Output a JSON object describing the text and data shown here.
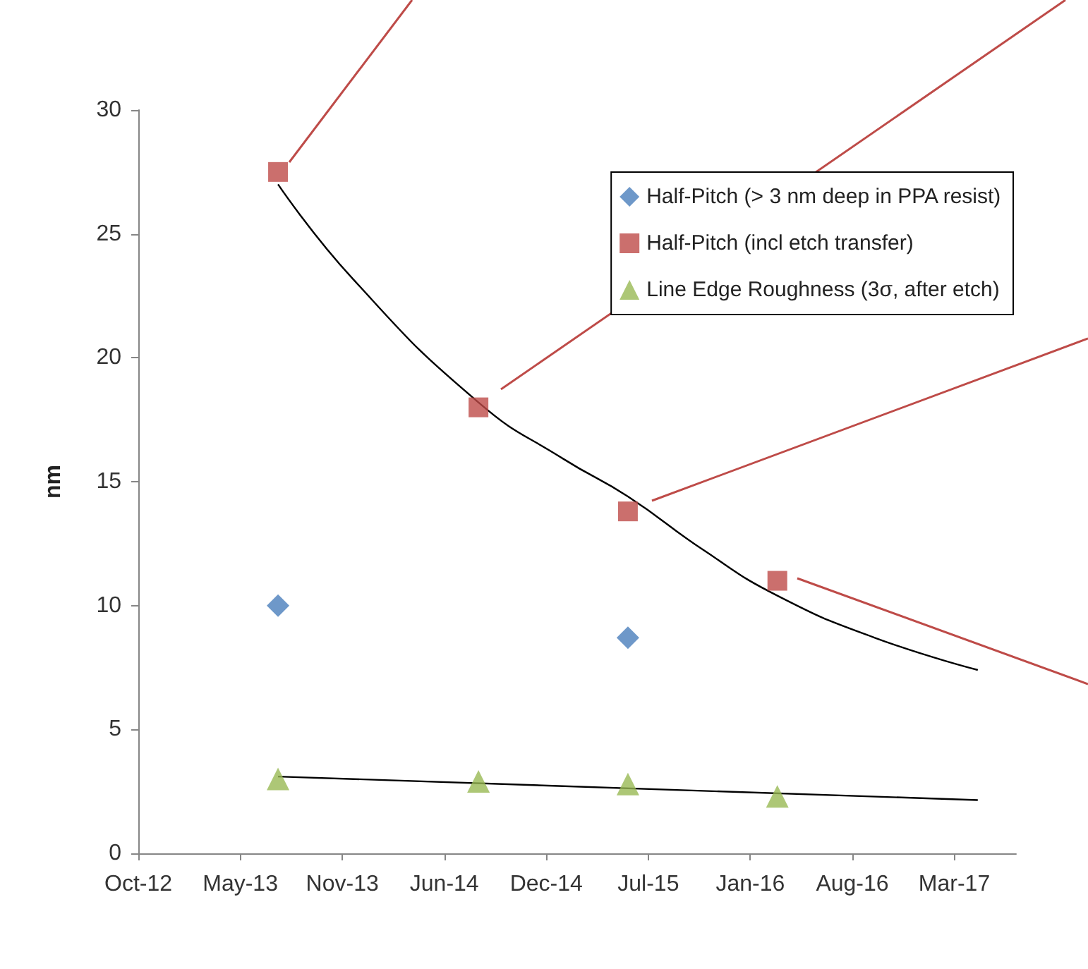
{
  "chart_data": {
    "type": "scatter",
    "ylabel": "nm",
    "xlim": [
      "2012-10-15",
      "2017-07-02"
    ],
    "xticks": [
      {
        "value": "2012-10-15",
        "label": "Oct-12"
      },
      {
        "value": "2013-05-03",
        "label": "May-13"
      },
      {
        "value": "2013-11-19",
        "label": "Nov-13"
      },
      {
        "value": "2014-06-07",
        "label": "Jun-14"
      },
      {
        "value": "2014-12-24",
        "label": "Dec-14"
      },
      {
        "value": "2015-07-12",
        "label": "Jul-15"
      },
      {
        "value": "2016-01-28",
        "label": "Jan-16"
      },
      {
        "value": "2016-08-15",
        "label": "Aug-16"
      },
      {
        "value": "2017-03-03",
        "label": "Mar-17"
      }
    ],
    "ylim": [
      0,
      30
    ],
    "yticks": [
      0,
      5,
      10,
      15,
      20,
      25,
      30
    ],
    "grid": false,
    "legend": "top right",
    "series": [
      {
        "name": "Half-Pitch (> 3 nm deep in PPA resist)",
        "color": "#4a7ebb",
        "marker": "diamond",
        "x": [
          "2013-07-16",
          "2015-06-02"
        ],
        "values": [
          10.0,
          8.7
        ]
      },
      {
        "name": "Half-Pitch (incl etch transfer)",
        "color": "#be4b48",
        "marker": "square",
        "x": [
          "2013-07-16",
          "2014-08-13",
          "2015-06-02",
          "2016-03-21"
        ],
        "values": [
          27.5,
          18.0,
          13.8,
          11.0
        ]
      },
      {
        "name": "Line Edge Roughness (3σ, after etch)",
        "color": "#98b954",
        "marker": "triangle",
        "x": [
          "2013-07-16",
          "2014-08-13",
          "2015-06-02",
          "2016-03-21"
        ],
        "values": [
          3.0,
          2.9,
          2.8,
          2.3
        ]
      },
      {
        "type": "line",
        "color": "#000000",
        "marker": "none",
        "x": [
          "2013-07-16",
          "2013-12-09",
          "2014-08-13",
          "2015-01-28",
          "2015-06-02",
          "2015-10-31",
          "2016-03-21",
          "2016-09-28",
          "2017-04-18"
        ],
        "values": [
          27.0,
          23.2,
          18.2,
          15.9,
          14.4,
          12.2,
          10.4,
          8.7,
          7.4
        ]
      },
      {
        "type": "line",
        "color": "#000000",
        "marker": "none",
        "x": [
          "2013-07-16",
          "2017-04-18"
        ],
        "values": [
          3.1,
          2.15
        ]
      }
    ]
  }
}
